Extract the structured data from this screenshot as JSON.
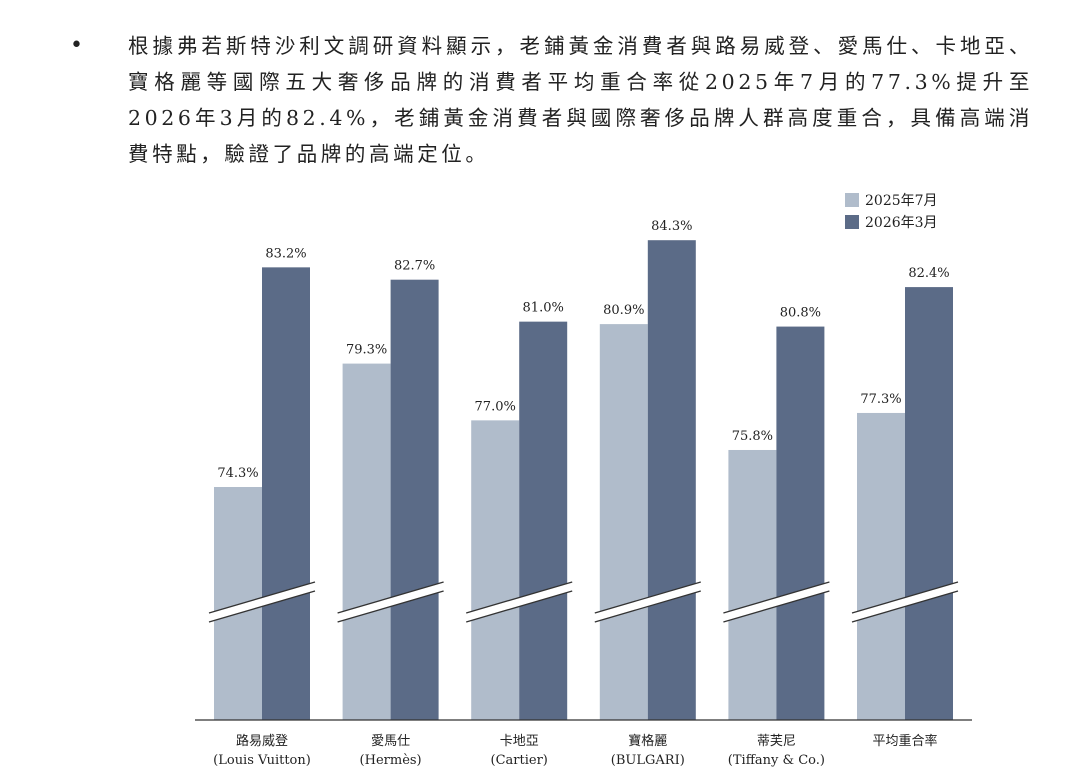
{
  "paragraph": {
    "bullet": "•",
    "text": "根據弗若斯特沙利文調研資料顯示，老鋪黃金消費者與路易威登、愛馬仕、卡地亞、寶格麗等國際五大奢侈品牌的消費者平均重合率從2025年7月的77.3%提升至2026年3月的82.4%，老鋪黃金消費者與國際奢侈品牌人群高度重合，具備高端消費特點，驗證了品牌的高端定位。"
  },
  "chart_data": {
    "type": "bar",
    "categories": [
      {
        "name": "路易威登",
        "sub": "(Louis Vuitton)"
      },
      {
        "name": "愛馬仕",
        "sub": "(Hermès)"
      },
      {
        "name": "卡地亞",
        "sub": "(Cartier)"
      },
      {
        "name": "寶格麗",
        "sub": "(BULGARI)"
      },
      {
        "name": "蒂芙尼",
        "sub": "(Tiffany & Co.)"
      },
      {
        "name": "平均重合率",
        "sub": ""
      }
    ],
    "series": [
      {
        "name": "2025年7月",
        "color": "#b0bccb",
        "values": [
          74.3,
          79.3,
          77.0,
          80.9,
          75.8,
          77.3
        ],
        "labels": [
          "74.3%",
          "79.3%",
          "77.0%",
          "80.9%",
          "75.8%",
          "77.3%"
        ]
      },
      {
        "name": "2026年3月",
        "color": "#5b6b87",
        "values": [
          83.2,
          82.7,
          81.0,
          84.3,
          80.8,
          82.4
        ],
        "labels": [
          "83.2%",
          "82.7%",
          "81.0%",
          "84.3%",
          "80.8%",
          "82.4%"
        ]
      }
    ],
    "axis_break": true,
    "legend_position": "top-right",
    "grid": false
  }
}
